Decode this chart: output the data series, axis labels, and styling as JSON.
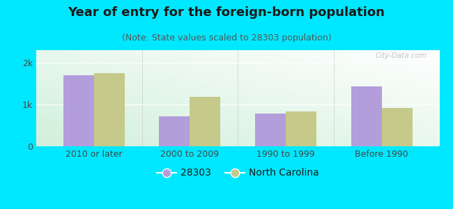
{
  "title": "Year of entry for the foreign-born population",
  "subtitle": "(Note: State values scaled to 28303 population)",
  "categories": [
    "2010 or later",
    "2000 to 2009",
    "1990 to 1999",
    "Before 1990"
  ],
  "series_28303": [
    1700,
    720,
    790,
    1430
  ],
  "series_nc": [
    1750,
    1180,
    840,
    920
  ],
  "color_28303": "#b39ddb",
  "color_nc": "#c5c98a",
  "bg_outer": "#00e8ff",
  "ylim": [
    0,
    2300
  ],
  "yticks": [
    0,
    1000,
    2000
  ],
  "ytick_labels": [
    "0",
    "1k",
    "2k"
  ],
  "bar_width": 0.32,
  "legend_label_28303": "28303",
  "legend_label_nc": "North Carolina",
  "title_fontsize": 13,
  "subtitle_fontsize": 9,
  "axis_label_fontsize": 9,
  "watermark": "City-Data.com"
}
